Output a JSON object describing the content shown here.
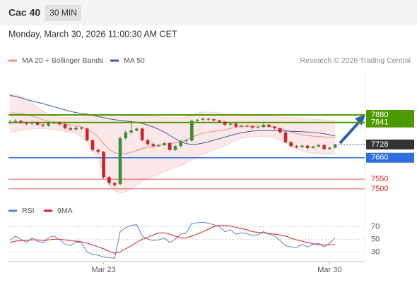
{
  "chart_data": {
    "type": "candlestick",
    "title": "Cac 40",
    "interval": "30 MIN",
    "subtitle": "Monday, March 30, 2026 11:00:30 AM CET",
    "source": "Research © 2026 Trading Central",
    "categories": [
      null,
      null,
      null,
      null,
      null,
      null,
      null,
      null,
      null,
      null,
      null,
      null,
      null,
      null,
      null,
      null,
      null,
      "Mar 23",
      null,
      null,
      null,
      null,
      null,
      null,
      null,
      null,
      null,
      null,
      null,
      null,
      null,
      null,
      null,
      null,
      null,
      null,
      null,
      null,
      null,
      null,
      null,
      null,
      null,
      null,
      null,
      null,
      null,
      null,
      null,
      null,
      null,
      null,
      null,
      null,
      null,
      null,
      null,
      null,
      "Mar 30",
      null
    ],
    "ylim": [
      7450,
      8100
    ],
    "ohlc": {
      "up_color": "#3a8f3a",
      "down_color": "#c62828",
      "open": [
        7840,
        7845,
        7850,
        7840,
        7835,
        7842,
        7830,
        7825,
        7838,
        7840,
        7832,
        7812,
        7805,
        7815,
        7810,
        7750,
        7700,
        7690,
        7560,
        7530,
        7525,
        7760,
        7790,
        7800,
        7810,
        7750,
        7730,
        7720,
        7725,
        7735,
        7700,
        7720,
        7745,
        7748,
        7850,
        7855,
        7860,
        7858,
        7852,
        7845,
        7830,
        7835,
        7820,
        7825,
        7822,
        7815,
        7818,
        7830,
        7820,
        7812,
        7790,
        7740,
        7720,
        7715,
        7722,
        7710,
        7718,
        7725,
        7705,
        7712
      ],
      "high": [
        7855,
        7858,
        7856,
        7846,
        7850,
        7848,
        7836,
        7845,
        7848,
        7846,
        7838,
        7818,
        7822,
        7820,
        7815,
        7756,
        7708,
        7695,
        7568,
        7536,
        7770,
        7800,
        7840,
        7815,
        7815,
        7758,
        7738,
        7732,
        7742,
        7740,
        7726,
        7752,
        7755,
        7856,
        7862,
        7868,
        7865,
        7860,
        7855,
        7850,
        7840,
        7838,
        7830,
        7830,
        7826,
        7824,
        7836,
        7834,
        7824,
        7815,
        7795,
        7745,
        7726,
        7728,
        7726,
        7722,
        7730,
        7730,
        7716,
        7732
      ],
      "low": [
        7832,
        7838,
        7835,
        7828,
        7830,
        7824,
        7818,
        7820,
        7832,
        7826,
        7805,
        7798,
        7800,
        7802,
        7745,
        7692,
        7682,
        7552,
        7520,
        7510,
        7518,
        7752,
        7782,
        7795,
        7745,
        7722,
        7712,
        7714,
        7720,
        7694,
        7695,
        7712,
        7740,
        7742,
        7845,
        7850,
        7850,
        7845,
        7838,
        7822,
        7825,
        7812,
        7815,
        7815,
        7808,
        7810,
        7812,
        7814,
        7805,
        7785,
        7735,
        7712,
        7708,
        7710,
        7702,
        7706,
        7712,
        7700,
        7702,
        7708
      ],
      "close": [
        7845,
        7850,
        7840,
        7835,
        7842,
        7830,
        7825,
        7838,
        7840,
        7832,
        7812,
        7805,
        7815,
        7810,
        7750,
        7700,
        7690,
        7560,
        7530,
        7520,
        7760,
        7790,
        7800,
        7810,
        7750,
        7730,
        7720,
        7725,
        7735,
        7700,
        7720,
        7745,
        7748,
        7850,
        7855,
        7860,
        7858,
        7852,
        7845,
        7830,
        7835,
        7820,
        7825,
        7822,
        7815,
        7818,
        7830,
        7820,
        7812,
        7790,
        7740,
        7720,
        7715,
        7722,
        7710,
        7718,
        7725,
        7705,
        7712,
        7728
      ]
    },
    "series": [
      {
        "name": "MA 20 + Bollinger Bands",
        "color": "#ef8a8a",
        "values": [
          7890,
          7890,
          7888,
          7882,
          7874,
          7865,
          7855,
          7846,
          7840,
          7835,
          7832,
          7828,
          7825,
          7818,
          7805,
          7789,
          7766,
          7732,
          7702,
          7686,
          7680,
          7681,
          7688,
          7697,
          7707,
          7714,
          7718,
          7722,
          7729,
          7733,
          7737,
          7743,
          7752,
          7765,
          7777,
          7787,
          7792,
          7796,
          7800,
          7804,
          7810,
          7817,
          7821,
          7822,
          7823,
          7823,
          7822,
          7821,
          7817,
          7810,
          7801,
          7793,
          7784,
          7778,
          7774,
          7771,
          7769,
          7767,
          7766,
          7765
        ],
        "upper": [
          7990,
          7985,
          7975,
          7960,
          7940,
          7920,
          7900,
          7885,
          7875,
          7870,
          7868,
          7866,
          7865,
          7866,
          7870,
          7878,
          7882,
          7885,
          7885,
          7883,
          7880,
          7878,
          7876,
          7875,
          7874,
          7873,
          7872,
          7870,
          7868,
          7866,
          7865,
          7866,
          7870,
          7880,
          7890,
          7895,
          7895,
          7893,
          7890,
          7888,
          7886,
          7884,
          7882,
          7880,
          7878,
          7876,
          7875,
          7874,
          7872,
          7870,
          7868,
          7866,
          7864,
          7862,
          7860,
          7858,
          7856,
          7854,
          7852,
          7850
        ],
        "lower": [
          7790,
          7795,
          7800,
          7805,
          7808,
          7810,
          7810,
          7808,
          7805,
          7800,
          7795,
          7790,
          7785,
          7770,
          7740,
          7700,
          7650,
          7580,
          7520,
          7490,
          7480,
          7485,
          7500,
          7520,
          7540,
          7555,
          7565,
          7575,
          7590,
          7600,
          7610,
          7620,
          7635,
          7650,
          7665,
          7680,
          7690,
          7700,
          7710,
          7720,
          7735,
          7750,
          7760,
          7765,
          7768,
          7770,
          7770,
          7768,
          7762,
          7750,
          7735,
          7720,
          7705,
          7695,
          7688,
          7684,
          7682,
          7680,
          7680,
          7680
        ]
      },
      {
        "name": "MA 50",
        "color": "#3b5ba5",
        "values": [
          7980,
          7975,
          7968,
          7960,
          7952,
          7945,
          7938,
          7930,
          7922,
          7914,
          7906,
          7898,
          7892,
          7888,
          7884,
          7878,
          7872,
          7866,
          7860,
          7855,
          7852,
          7849,
          7846,
          7842,
          7836,
          7828,
          7818,
          7806,
          7792,
          7775,
          7758,
          7742,
          7733,
          7728,
          7730,
          7735,
          7742,
          7750,
          7758,
          7766,
          7774,
          7782,
          7788,
          7793,
          7797,
          7799,
          7800,
          7800,
          7799,
          7798,
          7797,
          7796,
          7795,
          7794,
          7792,
          7790,
          7787,
          7783,
          7778,
          7772
        ]
      }
    ],
    "levels": {
      "resistance": [
        7880,
        7841
      ],
      "resistance_color": "#4c9a00",
      "last": 7728,
      "last_color": "#333333",
      "support": [
        7660
      ],
      "support_color": "#2f6fe0",
      "stops": [
        7550,
        7500
      ],
      "stops_color": "#e02020"
    },
    "rsi": {
      "ylim": [
        16,
        79
      ],
      "yticks": [
        70,
        50,
        30
      ],
      "series": [
        {
          "name": "RSI",
          "color": "#5b7fd6",
          "values": [
            48,
            55,
            50,
            45,
            52,
            47,
            44,
            53,
            55,
            50,
            42,
            40,
            46,
            44,
            30,
            26,
            25,
            22,
            21,
            20,
            62,
            68,
            72,
            73,
            55,
            50,
            48,
            49,
            52,
            45,
            50,
            58,
            60,
            75,
            76,
            77,
            75,
            73,
            70,
            62,
            65,
            58,
            60,
            59,
            56,
            57,
            62,
            58,
            55,
            48,
            40,
            38,
            37,
            42,
            38,
            42,
            44,
            38,
            44,
            52
          ]
        },
        {
          "name": "9MA",
          "color": "#e02020",
          "values": [
            45,
            47,
            48,
            48,
            49,
            49,
            48,
            49,
            50,
            50,
            49,
            48,
            47,
            46,
            44,
            41,
            38,
            35,
            31,
            28,
            30,
            35,
            40,
            45,
            50,
            53,
            57,
            60,
            60,
            58,
            55,
            52,
            52,
            55,
            58,
            62,
            66,
            70,
            72,
            72,
            71,
            69,
            67,
            65,
            62,
            61,
            60,
            59,
            58,
            57,
            55,
            52,
            49,
            47,
            45,
            43,
            42,
            41,
            41,
            42
          ]
        }
      ]
    }
  }
}
